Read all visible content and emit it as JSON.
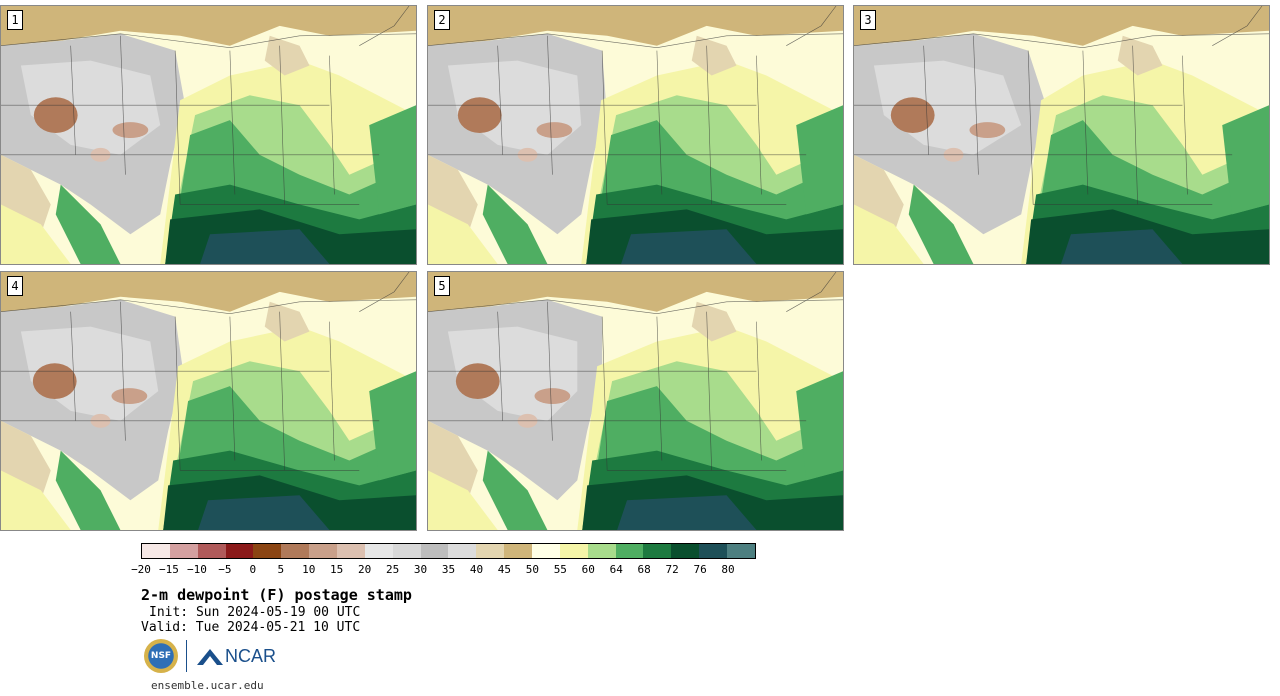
{
  "panels": [
    {
      "label": "1"
    },
    {
      "label": "2"
    },
    {
      "label": "3"
    },
    {
      "label": "4"
    },
    {
      "label": "5"
    }
  ],
  "colorbar": {
    "colors": [
      "#f6e8e6",
      "#d4a0a0",
      "#b05a5a",
      "#8b1a1a",
      "#8b4513",
      "#b07a5a",
      "#c9a08a",
      "#dcc0b0",
      "#e6e6e6",
      "#d8d8d8",
      "#bdbdbd",
      "#dcdcdc",
      "#e3d5b0",
      "#cfb57a",
      "#ffffe6",
      "#f5f5a8",
      "#a8dc8c",
      "#4fae62",
      "#1d7a40",
      "#0a4f2e",
      "#1e5058",
      "#4d7f80"
    ],
    "ticks": [
      "−20",
      "−15",
      "−10",
      "−5",
      "0",
      "5",
      "10",
      "15",
      "20",
      "25",
      "30",
      "35",
      "40",
      "45",
      "50",
      "55",
      "60",
      "64",
      "68",
      "72",
      "76",
      "80"
    ]
  },
  "title": "2-m dewpoint (F) postage stamp",
  "init": "Init: Sun 2024-05-19 00 UTC",
  "valid": "Valid: Tue 2024-05-21 10 UTC",
  "logos": {
    "nsf_text": "NSF",
    "ncar_text": "NCAR"
  },
  "url": "ensemble.ucar.edu"
}
